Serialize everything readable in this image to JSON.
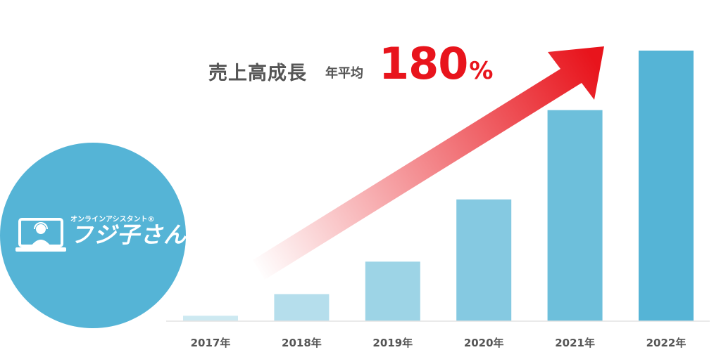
{
  "headline": {
    "title": "売上高成長",
    "avg_label": "年平均",
    "rate_value": "180",
    "rate_unit": "%"
  },
  "logo": {
    "sub": "オンラインアシスタント®",
    "main": "フジ子さん",
    "icon": "assistant-laptop-icon"
  },
  "colors": {
    "logo_bg": "#55b4d6",
    "headline_gray": "#555555",
    "accent_red": "#e8141c",
    "bar_light": "#cde9f1",
    "bar_dark": "#55b4d6"
  },
  "chart_data": {
    "type": "bar",
    "categories": [
      "2017年",
      "2018年",
      "2019年",
      "2020年",
      "2021年",
      "2022年"
    ],
    "values": [
      2,
      10,
      22,
      45,
      78,
      100
    ],
    "ylim": [
      0,
      100
    ],
    "grid": false,
    "legend": "none",
    "annotation": "売上高成長 年平均180%"
  }
}
